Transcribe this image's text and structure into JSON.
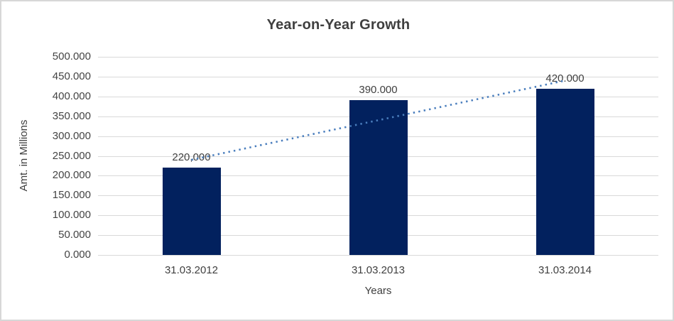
{
  "window": {
    "background": "#ffffff",
    "border_color": "#d7d7d7"
  },
  "chart_data": {
    "type": "bar",
    "title": "Year-on-Year Growth",
    "xlabel": "Years",
    "ylabel": "Amt. in Millions",
    "categories": [
      "31.03.2012",
      "31.03.2013",
      "31.03.2014"
    ],
    "values": [
      220000,
      390000,
      420000
    ],
    "value_labels": [
      "220,000",
      "390.000",
      "420.000"
    ],
    "ylim": [
      0,
      500000
    ],
    "y_tick_step": 50000,
    "y_tick_labels_bottom_to_top": [
      "0.000",
      "50.000",
      "100.000",
      "150.000",
      "200.000",
      "250.000",
      "300.000",
      "350.000",
      "400.000",
      "450.000",
      "500.000"
    ],
    "grid": true,
    "legend": false,
    "colors": {
      "bar": "#02215e",
      "gridline": "#d9d9d9",
      "title_text": "#3f3f3f",
      "tick_text": "#444444",
      "trendline": "#4a7ebd"
    },
    "trendline": {
      "type": "linear",
      "style": "dotted",
      "color": "#4a7ebd",
      "start_value": 240000,
      "end_value": 440000
    }
  }
}
